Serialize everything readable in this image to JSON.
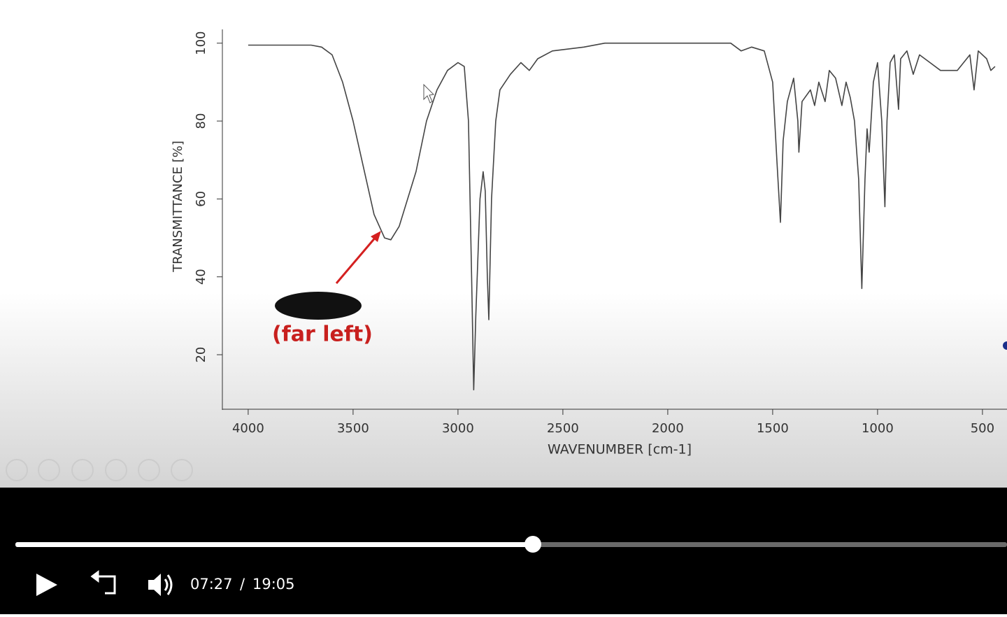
{
  "chart_data": {
    "type": "line",
    "y_label": "TRANSMITTANCE [%]",
    "x_label": "WAVENUMBER [cm-1]",
    "annotation": "(far left)",
    "xlim": [
      4123,
      383
    ],
    "ylim": [
      6,
      103
    ],
    "xticks": [
      4000,
      3500,
      3000,
      2500,
      2000,
      1500,
      1000,
      500
    ],
    "yticks": [
      20,
      40,
      60,
      80,
      100
    ],
    "color": "#444444",
    "x": [
      4000,
      3700,
      3650,
      3600,
      3550,
      3500,
      3450,
      3400,
      3350,
      3320,
      3280,
      3200,
      3150,
      3100,
      3050,
      3000,
      2970,
      2950,
      2935,
      2925,
      2915,
      2895,
      2880,
      2870,
      2860,
      2853,
      2840,
      2820,
      2800,
      2750,
      2700,
      2660,
      2620,
      2550,
      2400,
      2300,
      2000,
      1700,
      1650,
      1600,
      1540,
      1500,
      1480,
      1463,
      1450,
      1430,
      1400,
      1380,
      1375,
      1360,
      1320,
      1300,
      1280,
      1250,
      1230,
      1200,
      1170,
      1150,
      1130,
      1110,
      1090,
      1075,
      1060,
      1050,
      1040,
      1020,
      1000,
      980,
      965,
      955,
      940,
      920,
      900,
      890,
      860,
      830,
      800,
      750,
      700,
      620,
      560,
      540,
      520,
      480,
      460,
      440
    ],
    "values": [
      99.5,
      99.5,
      99,
      97,
      90,
      80,
      68,
      56,
      50,
      49.5,
      53,
      67,
      80,
      88,
      93,
      95,
      94,
      80,
      40,
      11,
      30,
      60,
      67,
      62,
      40,
      29,
      60,
      80,
      88,
      92,
      95,
      93,
      96,
      98,
      99,
      100,
      100,
      100,
      98,
      99,
      98,
      90,
      70,
      54,
      75,
      85,
      91,
      80,
      72,
      85,
      88,
      84,
      90,
      85,
      93,
      91,
      84,
      90,
      86,
      80,
      65,
      37,
      65,
      78,
      72,
      90,
      95,
      80,
      58,
      80,
      95,
      97,
      83,
      96,
      98,
      92,
      97,
      95,
      93,
      93,
      97,
      88,
      98,
      96,
      93,
      94
    ]
  },
  "player": {
    "current_time": "07:27",
    "separator": "/",
    "duration": "19:05"
  }
}
